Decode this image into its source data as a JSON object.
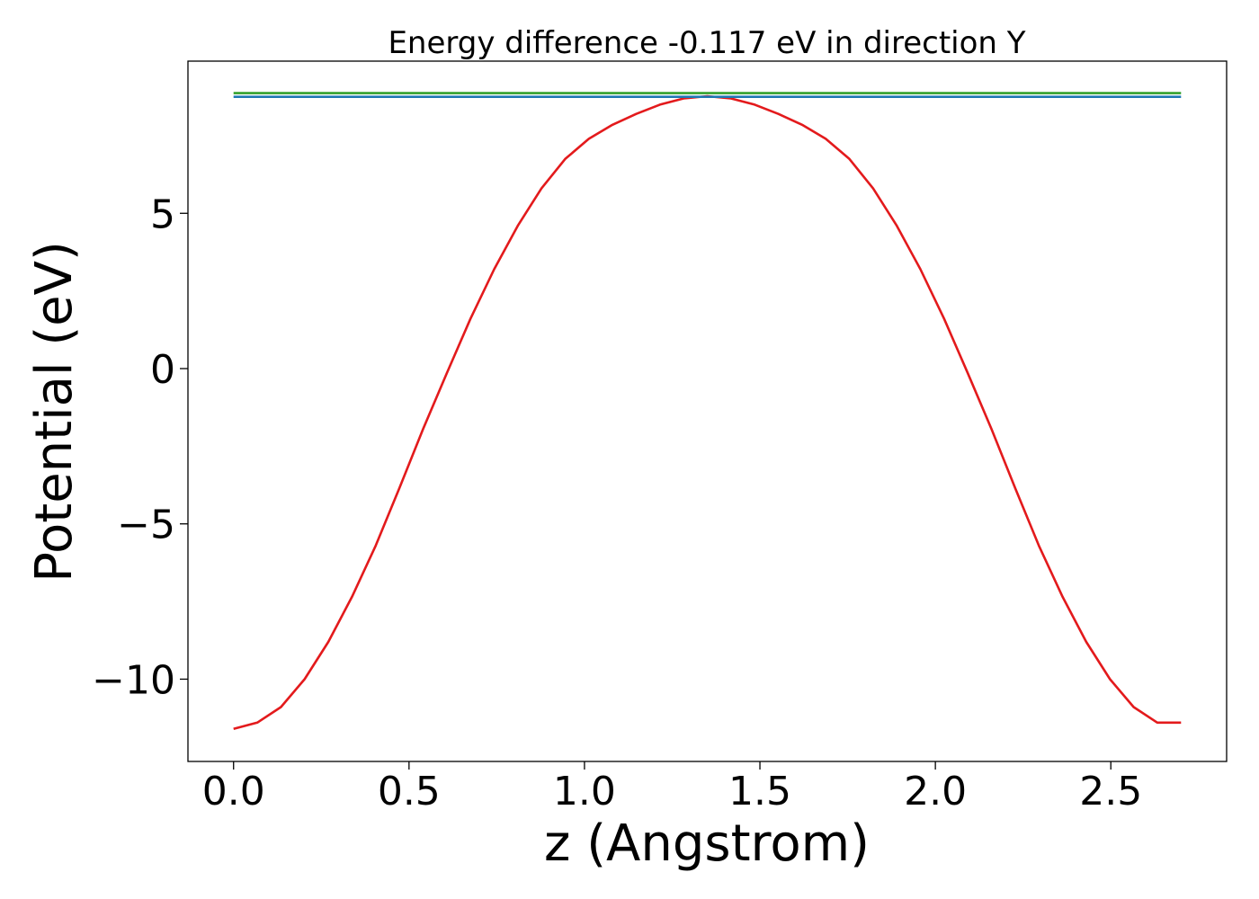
{
  "chart_data": {
    "type": "line",
    "title": "Energy difference -0.117 eV in direction Y",
    "xlabel": "z (Angstrom)",
    "ylabel": "Potential (eV)",
    "xlim": [
      -0.13,
      2.83
    ],
    "ylim": [
      -12.65,
      9.9
    ],
    "xticks": [
      0.0,
      0.5,
      1.0,
      1.5,
      2.0,
      2.5
    ],
    "xtick_labels": [
      "0.0",
      "0.5",
      "1.0",
      "1.5",
      "2.0",
      "2.5"
    ],
    "yticks": [
      5,
      0,
      -5,
      -10
    ],
    "ytick_labels": [
      "5",
      "0",
      "−5",
      "−10"
    ],
    "grid": false,
    "legend": "none",
    "series": [
      {
        "color": "#e31a1c",
        "x": [
          0.0,
          0.0675,
          0.135,
          0.2025,
          0.27,
          0.3375,
          0.405,
          0.4725,
          0.54,
          0.6075,
          0.675,
          0.7425,
          0.81,
          0.8775,
          0.945,
          1.0125,
          1.08,
          1.1475,
          1.215,
          1.2825,
          1.35,
          1.4175,
          1.485,
          1.5525,
          1.62,
          1.6875,
          1.755,
          1.8225,
          1.89,
          1.9575,
          2.025,
          2.0925,
          2.16,
          2.2275,
          2.295,
          2.3625,
          2.43,
          2.4975,
          2.565,
          2.6325,
          2.7
        ],
        "y": [
          -11.6,
          -11.4,
          -10.9,
          -10.0,
          -8.8,
          -7.35,
          -5.7,
          -3.85,
          -1.95,
          -0.15,
          1.6,
          3.2,
          4.6,
          5.8,
          6.75,
          7.4,
          7.85,
          8.2,
          8.5,
          8.7,
          8.77,
          8.7,
          8.5,
          8.2,
          7.85,
          7.4,
          6.75,
          5.8,
          4.6,
          3.2,
          1.6,
          -0.15,
          -1.95,
          -3.85,
          -5.7,
          -7.35,
          -8.8,
          -10.0,
          -10.9,
          -11.4,
          -11.4
        ]
      },
      {
        "color": "#33a02c",
        "x": [
          0.0,
          2.7
        ],
        "y": [
          8.87,
          8.87
        ]
      },
      {
        "color": "#1f78b4",
        "x": [
          0.0,
          2.7
        ],
        "y": [
          8.75,
          8.75
        ]
      }
    ]
  }
}
